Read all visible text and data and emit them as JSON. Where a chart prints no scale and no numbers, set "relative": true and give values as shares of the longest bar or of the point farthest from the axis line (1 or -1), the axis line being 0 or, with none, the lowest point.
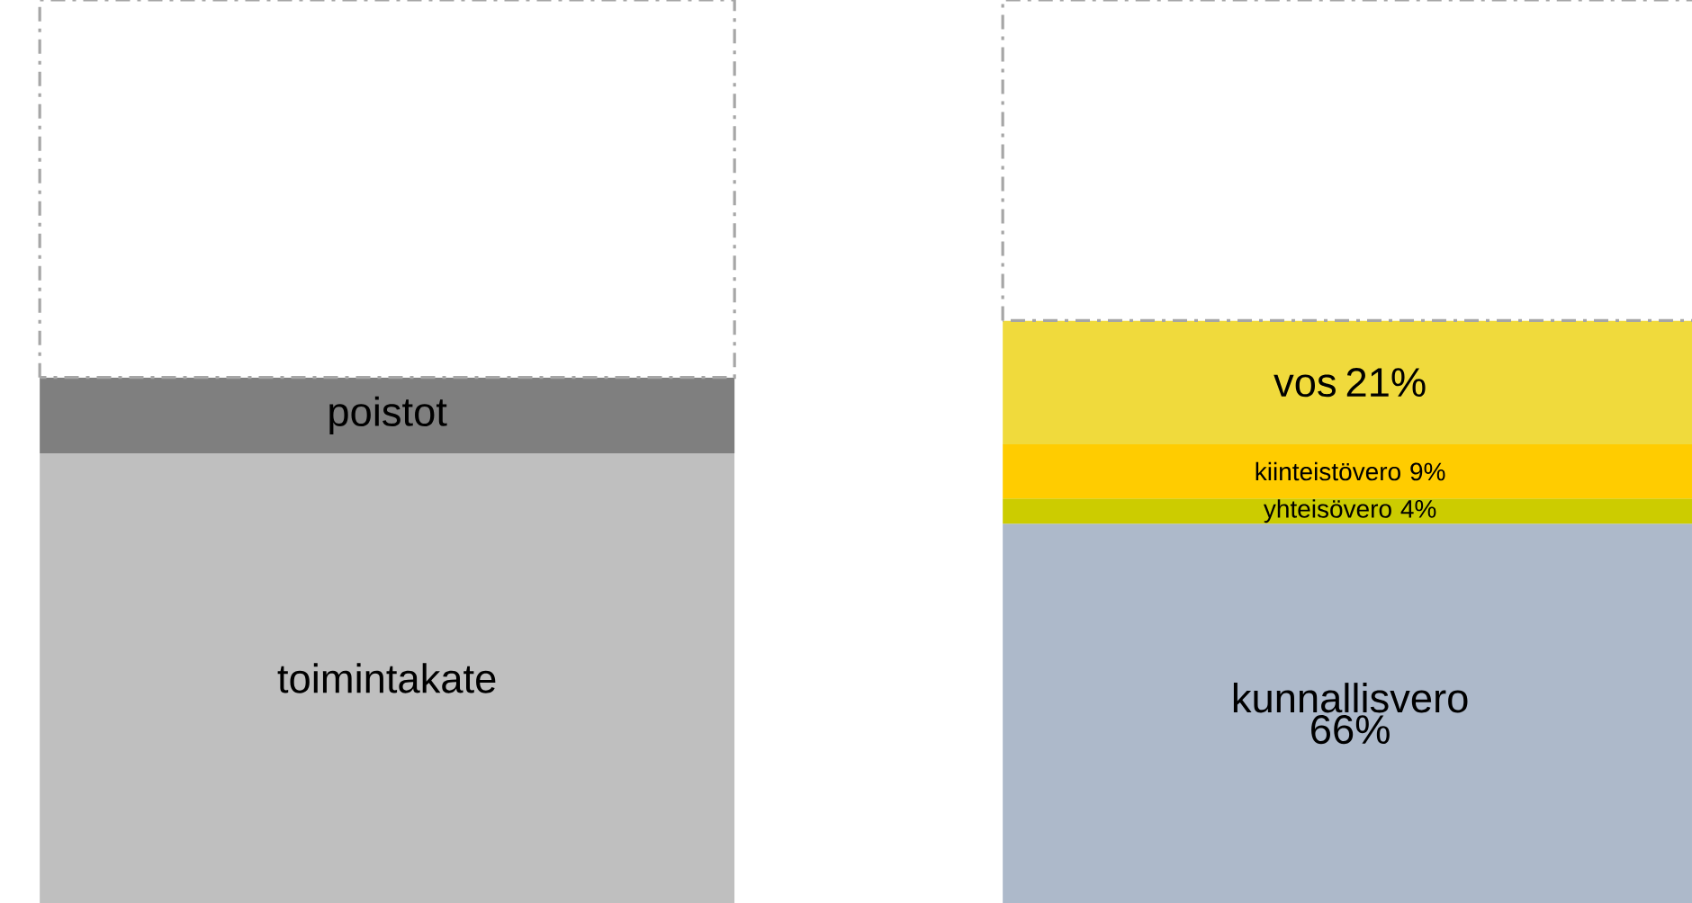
{
  "chart_data": {
    "type": "bar",
    "stacked": true,
    "relative": true,
    "categories": [
      null,
      null
    ],
    "series": [
      {
        "name": "toimintakate",
        "color": "#bfbfbf",
        "values": [
          0.498,
          null
        ]
      },
      {
        "name": "poistot",
        "color": "#7f7f7f",
        "values": [
          0.084,
          null
        ]
      },
      {
        "name": "kunnallisvero 66%",
        "color": "#adb9ca",
        "values": [
          null,
          0.42
        ]
      },
      {
        "name": "yhteisövero 4%",
        "color": "#cccc00",
        "values": [
          null,
          0.028
        ]
      },
      {
        "name": "kiinteistövero 9%",
        "color": "#ffcc00",
        "values": [
          null,
          0.06
        ]
      },
      {
        "name": "vos 21%",
        "color": "#f0da3c",
        "values": [
          null,
          0.137
        ]
      },
      {
        "color": "#ffffff",
        "line_style": "dashed",
        "values": [
          0.418,
          0.355
        ]
      }
    ]
  }
}
